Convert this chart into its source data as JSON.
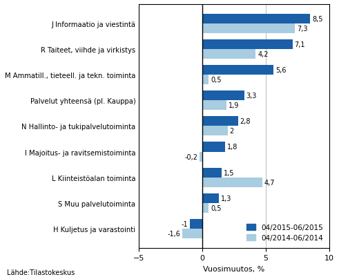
{
  "categories": [
    "H Kuljetus ja varastointi",
    "S Muu palvelutoiminta",
    "L Kiinteistöalan toiminta",
    "I Majoitus- ja ravitsemistoiminta",
    "N Hallinto- ja tukipalvelutoiminta",
    "Palvelut yhteensä (pl. Kauppa)",
    "M Ammatill., tieteell. ja tekn. toiminta",
    "R Taiteet, viihde ja virkistys",
    "J Informaatio ja viestintä"
  ],
  "values_2015": [
    -1.0,
    1.3,
    1.5,
    1.8,
    2.8,
    3.3,
    5.6,
    7.1,
    8.5
  ],
  "values_2014": [
    -1.6,
    0.5,
    4.7,
    -0.2,
    2.0,
    1.9,
    0.5,
    4.2,
    7.3
  ],
  "color_2015": "#1a5fa8",
  "color_2014": "#a8cce0",
  "xlabel": "Vuosimuutos, %",
  "xlim": [
    -5,
    10
  ],
  "xticks": [
    -5,
    0,
    5,
    10
  ],
  "legend_2015": "04/2015-06/2015",
  "legend_2014": "04/2014-06/2014",
  "source": "Lähde:Tilastokeskus",
  "bar_height": 0.38
}
